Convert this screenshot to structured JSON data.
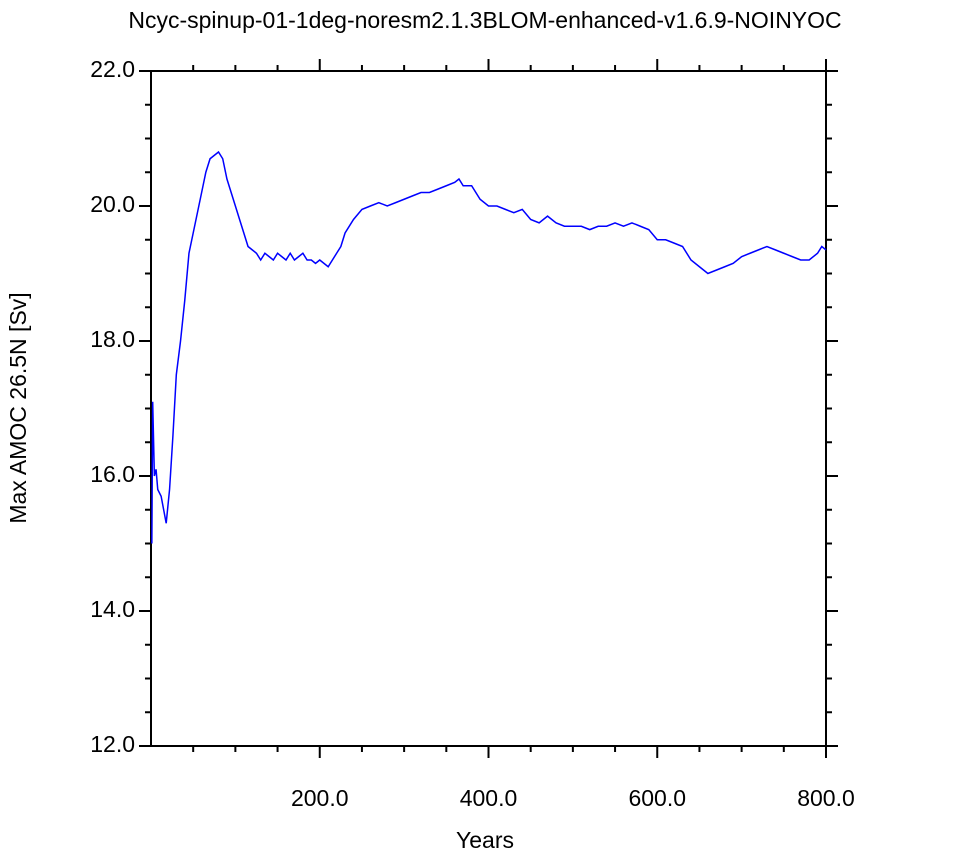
{
  "chart_data": {
    "type": "line",
    "title": "Ncyc-spinup-01-1deg-noresm2.1.3BLOM-enhanced-v1.6.9-NOINYOC",
    "x_label": "Years",
    "y_label": "Max AMOC 26.5N [Sv]",
    "x": [
      1,
      2,
      4,
      6,
      8,
      12,
      15,
      18,
      22,
      26,
      30,
      35,
      40,
      45,
      50,
      55,
      60,
      65,
      70,
      75,
      80,
      85,
      90,
      95,
      100,
      105,
      110,
      115,
      120,
      125,
      130,
      135,
      140,
      145,
      150,
      155,
      160,
      165,
      170,
      175,
      180,
      185,
      190,
      195,
      200,
      210,
      220,
      225,
      230,
      240,
      250,
      260,
      270,
      280,
      290,
      300,
      310,
      320,
      330,
      340,
      350,
      360,
      365,
      370,
      380,
      390,
      400,
      410,
      420,
      430,
      440,
      450,
      460,
      470,
      480,
      490,
      500,
      510,
      520,
      530,
      540,
      550,
      560,
      570,
      580,
      590,
      600,
      610,
      620,
      630,
      640,
      650,
      660,
      670,
      680,
      690,
      700,
      710,
      720,
      730,
      740,
      750,
      760,
      770,
      780,
      790,
      795,
      800
    ],
    "series": [
      {
        "name": "AMOC",
        "color": "#0000ff",
        "values": [
          15.0,
          17.1,
          16.0,
          16.1,
          15.8,
          15.7,
          15.5,
          15.3,
          15.8,
          16.6,
          17.5,
          18.0,
          18.6,
          19.3,
          19.6,
          19.9,
          20.2,
          20.5,
          20.7,
          20.75,
          20.8,
          20.7,
          20.4,
          20.2,
          20.0,
          19.8,
          19.6,
          19.4,
          19.35,
          19.3,
          19.2,
          19.3,
          19.25,
          19.2,
          19.3,
          19.25,
          19.2,
          19.3,
          19.2,
          19.25,
          19.3,
          19.2,
          19.2,
          19.15,
          19.2,
          19.1,
          19.3,
          19.4,
          19.6,
          19.8,
          19.95,
          20.0,
          20.05,
          20.0,
          20.05,
          20.1,
          20.15,
          20.2,
          20.2,
          20.25,
          20.3,
          20.35,
          20.4,
          20.3,
          20.3,
          20.1,
          20.0,
          20.0,
          19.95,
          19.9,
          19.95,
          19.8,
          19.75,
          19.85,
          19.75,
          19.7,
          19.7,
          19.7,
          19.65,
          19.7,
          19.7,
          19.75,
          19.7,
          19.75,
          19.7,
          19.65,
          19.5,
          19.5,
          19.45,
          19.4,
          19.2,
          19.1,
          19.0,
          19.05,
          19.1,
          19.15,
          19.25,
          19.3,
          19.35,
          19.4,
          19.35,
          19.3,
          19.25,
          19.2,
          19.2,
          19.3,
          19.4,
          19.35
        ]
      }
    ],
    "xlim": [
      0,
      800
    ],
    "xticks": [
      {
        "value": 200,
        "label": "200.0"
      },
      {
        "value": 400,
        "label": "400.0"
      },
      {
        "value": 600,
        "label": "600.0"
      },
      {
        "value": 800,
        "label": "800.0"
      }
    ],
    "xminorticks": [
      50,
      100,
      150,
      250,
      300,
      350,
      450,
      500,
      550,
      650,
      700,
      750
    ],
    "ylim": [
      12,
      22
    ],
    "yticks": [
      {
        "value": 12,
        "label": "12.0"
      },
      {
        "value": 14,
        "label": "14.0"
      },
      {
        "value": 16,
        "label": "16.0"
      },
      {
        "value": 18,
        "label": "18.0"
      },
      {
        "value": 20,
        "label": "20.0"
      },
      {
        "value": 22,
        "label": "22.0"
      }
    ],
    "yminorticks": [
      12.5,
      13,
      13.5,
      14.5,
      15,
      15.5,
      16.5,
      17,
      17.5,
      18.5,
      19,
      19.5,
      20.5,
      21,
      21.5
    ]
  }
}
